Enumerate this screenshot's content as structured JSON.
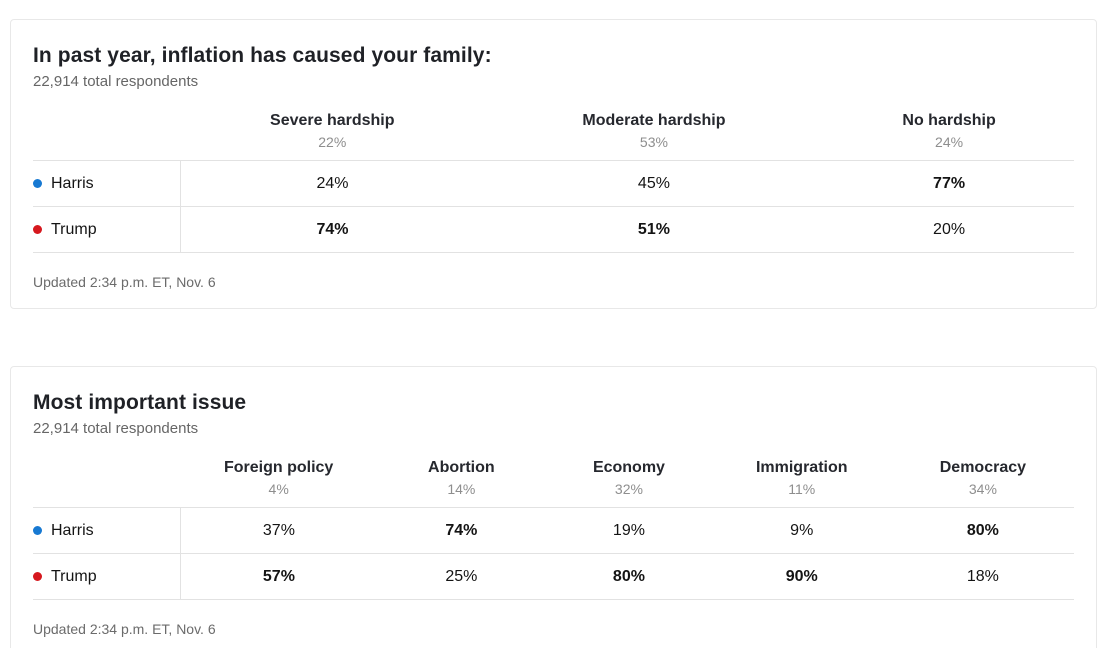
{
  "colors": {
    "harris": "#1b7fd2",
    "trump": "#c4161c",
    "harris_dot": "#1779d2",
    "trump_dot": "#d6181e"
  },
  "tables": [
    {
      "title": "In past year, inflation has caused your family:",
      "subtitle": "22,914 total respondents",
      "updated": "Updated 2:34 p.m. ET, Nov. 6",
      "columns": [
        {
          "label": "Severe hardship",
          "share": "22%"
        },
        {
          "label": "Moderate hardship",
          "share": "53%"
        },
        {
          "label": "No hardship",
          "share": "24%"
        }
      ],
      "rows": [
        {
          "name": "Harris",
          "party": "harris",
          "cells": [
            {
              "value": "24%",
              "highlight": ""
            },
            {
              "value": "45%",
              "highlight": ""
            },
            {
              "value": "77%",
              "highlight": "harris"
            }
          ]
        },
        {
          "name": "Trump",
          "party": "trump",
          "cells": [
            {
              "value": "74%",
              "highlight": "trump"
            },
            {
              "value": "51%",
              "highlight": "trump"
            },
            {
              "value": "20%",
              "highlight": ""
            }
          ]
        }
      ]
    },
    {
      "title": "Most important issue",
      "subtitle": "22,914 total respondents",
      "updated": "Updated 2:34 p.m. ET, Nov. 6",
      "columns": [
        {
          "label": "Foreign policy",
          "share": "4%"
        },
        {
          "label": "Abortion",
          "share": "14%"
        },
        {
          "label": "Economy",
          "share": "32%"
        },
        {
          "label": "Immigration",
          "share": "11%"
        },
        {
          "label": "Democracy",
          "share": "34%"
        }
      ],
      "rows": [
        {
          "name": "Harris",
          "party": "harris",
          "cells": [
            {
              "value": "37%",
              "highlight": ""
            },
            {
              "value": "74%",
              "highlight": "harris"
            },
            {
              "value": "19%",
              "highlight": ""
            },
            {
              "value": "9%",
              "highlight": ""
            },
            {
              "value": "80%",
              "highlight": "harris"
            }
          ]
        },
        {
          "name": "Trump",
          "party": "trump",
          "cells": [
            {
              "value": "57%",
              "highlight": "trump"
            },
            {
              "value": "25%",
              "highlight": ""
            },
            {
              "value": "80%",
              "highlight": "trump"
            },
            {
              "value": "90%",
              "highlight": "trump"
            },
            {
              "value": "18%",
              "highlight": ""
            }
          ]
        }
      ]
    }
  ],
  "chart_data": [
    {
      "type": "table",
      "title": "In past year, inflation has caused your family:",
      "subtitle": "22,914 total respondents",
      "total_respondents": 22914,
      "categories": [
        "Severe hardship",
        "Moderate hardship",
        "No hardship"
      ],
      "category_share_pct": [
        22,
        53,
        24
      ],
      "series": [
        {
          "name": "Harris",
          "values": [
            24,
            45,
            77
          ]
        },
        {
          "name": "Trump",
          "values": [
            74,
            51,
            20
          ]
        }
      ],
      "highlighted_cells": [
        {
          "series": "Harris",
          "category": "No hardship",
          "value": 77
        },
        {
          "series": "Trump",
          "category": "Severe hardship",
          "value": 74
        },
        {
          "series": "Trump",
          "category": "Moderate hardship",
          "value": 51
        }
      ],
      "footnote": "Updated 2:34 p.m. ET, Nov. 6"
    },
    {
      "type": "table",
      "title": "Most important issue",
      "subtitle": "22,914 total respondents",
      "total_respondents": 22914,
      "categories": [
        "Foreign policy",
        "Abortion",
        "Economy",
        "Immigration",
        "Democracy"
      ],
      "category_share_pct": [
        4,
        14,
        32,
        11,
        34
      ],
      "series": [
        {
          "name": "Harris",
          "values": [
            37,
            74,
            19,
            9,
            80
          ]
        },
        {
          "name": "Trump",
          "values": [
            57,
            25,
            80,
            90,
            18
          ]
        }
      ],
      "highlighted_cells": [
        {
          "series": "Harris",
          "category": "Abortion",
          "value": 74
        },
        {
          "series": "Harris",
          "category": "Democracy",
          "value": 80
        },
        {
          "series": "Trump",
          "category": "Foreign policy",
          "value": 57
        },
        {
          "series": "Trump",
          "category": "Economy",
          "value": 80
        },
        {
          "series": "Trump",
          "category": "Immigration",
          "value": 90
        }
      ],
      "footnote": "Updated 2:34 p.m. ET, Nov. 6"
    }
  ]
}
